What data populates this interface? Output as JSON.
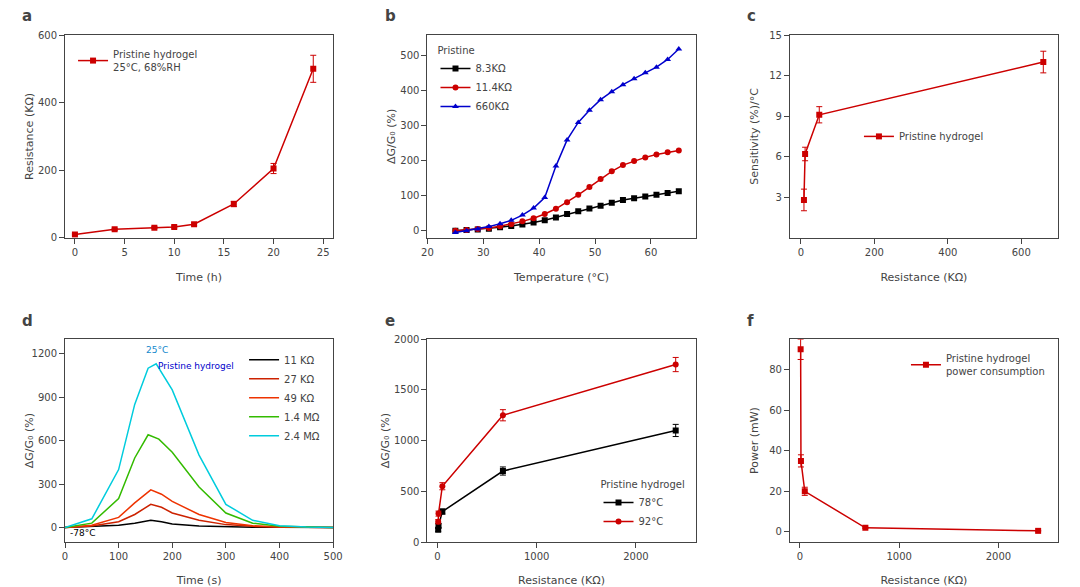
{
  "chart_data": [
    {
      "type": "line",
      "title": "a",
      "xlabel": "Time (h)",
      "ylabel": "Resistance (KΩ)",
      "x": [
        0,
        4,
        8,
        10,
        12,
        16,
        20,
        24
      ],
      "series": [
        {
          "name": "Pristine hydrogel\n25°C, 68%RH",
          "color": "#cc0000",
          "marker": "square",
          "values": [
            10,
            25,
            30,
            32,
            40,
            100,
            205,
            500
          ],
          "yerr": [
            2,
            3,
            3,
            3,
            4,
            8,
            15,
            40
          ]
        }
      ],
      "xlim": [
        -1,
        26
      ],
      "ylim": [
        0,
        600
      ],
      "xticks": [
        0,
        5,
        10,
        15,
        20,
        25
      ],
      "yticks": [
        0,
        200,
        400,
        600
      ],
      "grid": false,
      "legend": "upper left"
    },
    {
      "type": "line",
      "title": "b",
      "xlabel": "Temperature (°C)",
      "ylabel": "ΔG/G₀ (%)",
      "legend_title": "Pristine",
      "x": [
        25,
        27,
        29,
        31,
        33,
        35,
        37,
        39,
        41,
        43,
        45,
        47,
        49,
        51,
        53,
        55,
        57,
        59,
        61,
        63,
        65
      ],
      "series": [
        {
          "name": "8.3KΩ",
          "color": "#000000",
          "marker": "square",
          "values": [
            0,
            2,
            4,
            6,
            10,
            14,
            18,
            24,
            30,
            38,
            48,
            56,
            64,
            72,
            80,
            88,
            93,
            98,
            103,
            108,
            113
          ]
        },
        {
          "name": "11.4KΩ",
          "color": "#cc0000",
          "marker": "circle",
          "values": [
            0,
            2,
            5,
            8,
            13,
            19,
            27,
            36,
            48,
            63,
            82,
            103,
            125,
            148,
            170,
            188,
            200,
            210,
            218,
            225,
            230
          ]
        },
        {
          "name": "660KΩ",
          "color": "#0000cc",
          "marker": "triangle",
          "values": [
            -5,
            0,
            5,
            12,
            20,
            30,
            45,
            65,
            95,
            185,
            260,
            310,
            345,
            375,
            398,
            418,
            435,
            452,
            468,
            490,
            520
          ]
        }
      ],
      "xlim": [
        20,
        68
      ],
      "ylim": [
        -20,
        560
      ],
      "xticks": [
        20,
        30,
        40,
        50,
        60
      ],
      "yticks": [
        0,
        100,
        200,
        300,
        400,
        500
      ],
      "grid": false,
      "legend": "upper left"
    },
    {
      "type": "line",
      "title": "c",
      "xlabel": "Resistance (KΩ)",
      "ylabel": "Sensitivity (%)/°C",
      "x": [
        8.3,
        11.4,
        50,
        660
      ],
      "series": [
        {
          "name": "Pristine hydrogel",
          "color": "#cc0000",
          "marker": "square",
          "values": [
            2.8,
            6.2,
            9.1,
            13.0
          ],
          "yerr": [
            0.8,
            0.5,
            0.6,
            0.8
          ]
        }
      ],
      "xlim": [
        -30,
        700
      ],
      "ylim": [
        0,
        15
      ],
      "xticks": [
        0,
        200,
        400,
        600
      ],
      "yticks": [
        3,
        6,
        9,
        12,
        15
      ],
      "grid": false,
      "legend": "center"
    },
    {
      "type": "line",
      "title": "d",
      "xlabel": "Time (s)",
      "ylabel": "ΔG/G₀ (%)",
      "series": [
        {
          "name": "11 KΩ",
          "color": "#000000",
          "x": [
            0,
            50,
            100,
            130,
            160,
            180,
            200,
            250,
            300,
            350,
            400,
            450,
            500
          ],
          "values": [
            0,
            5,
            15,
            30,
            50,
            40,
            25,
            10,
            5,
            2,
            1,
            0,
            0
          ]
        },
        {
          "name": "27 KΩ",
          "color": "#cc2200",
          "x": [
            0,
            50,
            100,
            130,
            160,
            180,
            200,
            250,
            300,
            350,
            400,
            450,
            500
          ],
          "values": [
            0,
            10,
            40,
            90,
            160,
            140,
            100,
            50,
            20,
            8,
            3,
            1,
            0
          ]
        },
        {
          "name": "49 KΩ",
          "color": "#ee3300",
          "x": [
            0,
            50,
            100,
            130,
            160,
            180,
            200,
            250,
            300,
            350,
            400,
            450,
            500
          ],
          "values": [
            0,
            15,
            70,
            170,
            260,
            230,
            180,
            90,
            35,
            12,
            4,
            1,
            0
          ]
        },
        {
          "name": "1.4 MΩ",
          "color": "#33bb00",
          "x": [
            0,
            50,
            100,
            130,
            155,
            175,
            200,
            250,
            300,
            350,
            400,
            450,
            500
          ],
          "values": [
            0,
            30,
            200,
            480,
            640,
            610,
            520,
            280,
            100,
            30,
            8,
            2,
            0
          ]
        },
        {
          "name": "2.4 MΩ",
          "color": "#00ccdd",
          "x": [
            0,
            50,
            100,
            130,
            155,
            170,
            200,
            250,
            300,
            350,
            400,
            450,
            500
          ],
          "values": [
            0,
            60,
            400,
            850,
            1100,
            1130,
            950,
            500,
            160,
            50,
            12,
            3,
            0
          ]
        }
      ],
      "annotations": [
        {
          "text": "25°C",
          "x": 148,
          "y": 1190,
          "color": "#1188cc"
        },
        {
          "text": "Pristine hydrogel",
          "x": 170,
          "y": 1080,
          "color": "#0000cc"
        },
        {
          "text": "-78°C",
          "x": 5,
          "y": -75,
          "color": "black"
        }
      ],
      "xlim": [
        0,
        500
      ],
      "ylim": [
        -100,
        1300
      ],
      "xticks": [
        0,
        100,
        200,
        300,
        400,
        500
      ],
      "yticks": [
        0,
        300,
        600,
        900,
        1200
      ],
      "grid": false,
      "legend": "upper right"
    },
    {
      "type": "line",
      "title": "e",
      "xlabel": "Resistance (KΩ)",
      "ylabel": "ΔG/G₀ (%)",
      "legend_title": "Pristine hydrogel",
      "x": [
        8.3,
        11.4,
        50,
        660,
        2400
      ],
      "series": [
        {
          "name": "78°C",
          "color": "#000000",
          "marker": "square",
          "values": [
            120,
            160,
            300,
            700,
            1100
          ],
          "yerr": [
            15,
            20,
            25,
            40,
            60
          ]
        },
        {
          "name": "92°C",
          "color": "#cc0000",
          "marker": "circle",
          "values": [
            200,
            280,
            550,
            1250,
            1750
          ],
          "yerr": [
            20,
            25,
            35,
            55,
            70
          ]
        }
      ],
      "xlim": [
        -100,
        2600
      ],
      "ylim": [
        0,
        2000
      ],
      "xticks": [
        0,
        1000,
        2000
      ],
      "yticks": [
        0,
        500,
        1000,
        1500,
        2000
      ],
      "grid": false,
      "legend": "lower right"
    },
    {
      "type": "line",
      "title": "f",
      "xlabel": "Resistance (KΩ)",
      "ylabel": "Power (mW)",
      "x": [
        8.3,
        11.4,
        50,
        660,
        2400
      ],
      "series": [
        {
          "name": "Pristine hydrogel\npower consumption",
          "color": "#cc0000",
          "marker": "square",
          "values": [
            90,
            35,
            20,
            2,
            0.5
          ],
          "yerr": [
            5,
            3,
            2,
            0.3,
            0.1
          ]
        }
      ],
      "xlim": [
        -100,
        2600
      ],
      "ylim": [
        -5,
        95
      ],
      "xticks": [
        0,
        1000,
        2000
      ],
      "yticks": [
        0,
        20,
        40,
        60,
        80
      ],
      "grid": false,
      "legend": "upper right"
    }
  ]
}
